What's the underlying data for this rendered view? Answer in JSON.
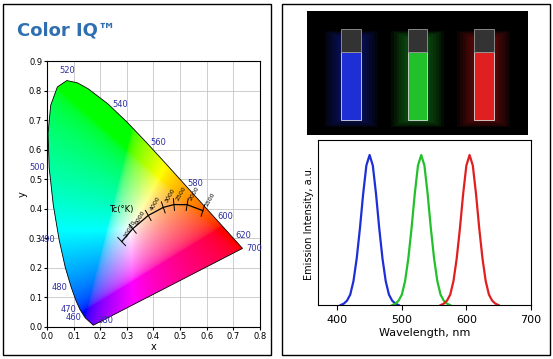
{
  "chart_data": [
    {
      "type": "chromaticity",
      "title": "Color IQ™",
      "xlabel": "x",
      "ylabel": "y",
      "xlim": [
        0,
        0.8
      ],
      "ylim": [
        0,
        0.9
      ],
      "xticks": [
        {
          "value": 0,
          "label": "0.0"
        },
        0.1,
        0.2,
        0.3,
        0.4,
        0.5,
        0.6,
        0.7,
        0.8
      ],
      "yticks": [
        {
          "value": 0,
          "label": "0.0"
        },
        0.1,
        0.2,
        0.3,
        0.4,
        0.5,
        0.6,
        0.7,
        0.8,
        0.9
      ],
      "grid": true,
      "spectral_locus": {
        "x": [
          0.1741,
          0.144,
          0.1241,
          0.1096,
          0.0913,
          0.0687,
          0.0454,
          0.0235,
          0.0082,
          0.0039,
          0.0139,
          0.0389,
          0.0743,
          0.1142,
          0.1547,
          0.2296,
          0.3016,
          0.3731,
          0.4441,
          0.5125,
          0.5752,
          0.627,
          0.6658,
          0.6915,
          0.719,
          0.7347
        ],
        "y": [
          0.005,
          0.0297,
          0.0578,
          0.0868,
          0.1327,
          0.2007,
          0.295,
          0.4127,
          0.5384,
          0.6548,
          0.7502,
          0.812,
          0.8338,
          0.8262,
          0.8059,
          0.7543,
          0.6923,
          0.6245,
          0.5547,
          0.4866,
          0.4242,
          0.3725,
          0.334,
          0.3083,
          0.2809,
          0.2653
        ],
        "labels": [
          380,
          460,
          470,
          null,
          480,
          null,
          490,
          null,
          500,
          null,
          null,
          null,
          520,
          null,
          null,
          540,
          null,
          560,
          null,
          580,
          null,
          600,
          null,
          620,
          null,
          700
        ]
      },
      "planckian_locus": {
        "label": "Tc(°K)",
        "x": [
          0.2807,
          0.3221,
          0.3805,
          0.4369,
          0.477,
          0.5266,
          0.5857
        ],
        "y": [
          0.2884,
          0.3318,
          0.3768,
          0.4041,
          0.4137,
          0.4133,
          0.3931
        ],
        "labels": [
          10000,
          6000,
          4000,
          3000,
          2500,
          2000,
          1500
        ]
      }
    },
    {
      "type": "line",
      "xlabel": "Wavelength, nm",
      "ylabel": "Emission Intensity, a.u.",
      "xlim": [
        370,
        700
      ],
      "xticks": [
        400,
        500,
        600,
        700
      ],
      "ylim": [
        0,
        1.1
      ],
      "yticks": [],
      "tick_labels": "x",
      "series": [
        {
          "color": "#1e2fd6",
          "x": [
            405,
            410,
            415,
            420,
            425,
            430,
            435,
            440,
            445,
            450,
            455,
            460,
            465,
            470,
            475,
            480,
            485,
            490,
            495
          ],
          "values": [
            0.0,
            0.01,
            0.03,
            0.07,
            0.16,
            0.31,
            0.51,
            0.74,
            0.93,
            1.0,
            0.93,
            0.74,
            0.51,
            0.31,
            0.16,
            0.07,
            0.03,
            0.01,
            0.0
          ]
        },
        {
          "color": "#22c02a",
          "x": [
            485,
            490,
            495,
            500,
            505,
            510,
            515,
            520,
            525,
            530,
            535,
            540,
            545,
            550,
            555,
            560,
            565,
            570,
            575
          ],
          "values": [
            0.0,
            0.01,
            0.03,
            0.07,
            0.16,
            0.31,
            0.51,
            0.74,
            0.93,
            1.0,
            0.93,
            0.74,
            0.51,
            0.31,
            0.16,
            0.07,
            0.03,
            0.01,
            0.0
          ]
        },
        {
          "color": "#e02020",
          "x": [
            560,
            565,
            570,
            575,
            580,
            585,
            590,
            595,
            600,
            605,
            610,
            615,
            620,
            625,
            630,
            635,
            640,
            645,
            650
          ],
          "values": [
            0.0,
            0.01,
            0.03,
            0.07,
            0.16,
            0.31,
            0.51,
            0.74,
            0.93,
            1.0,
            0.93,
            0.74,
            0.51,
            0.31,
            0.16,
            0.07,
            0.03,
            0.01,
            0.0
          ]
        }
      ]
    }
  ]
}
